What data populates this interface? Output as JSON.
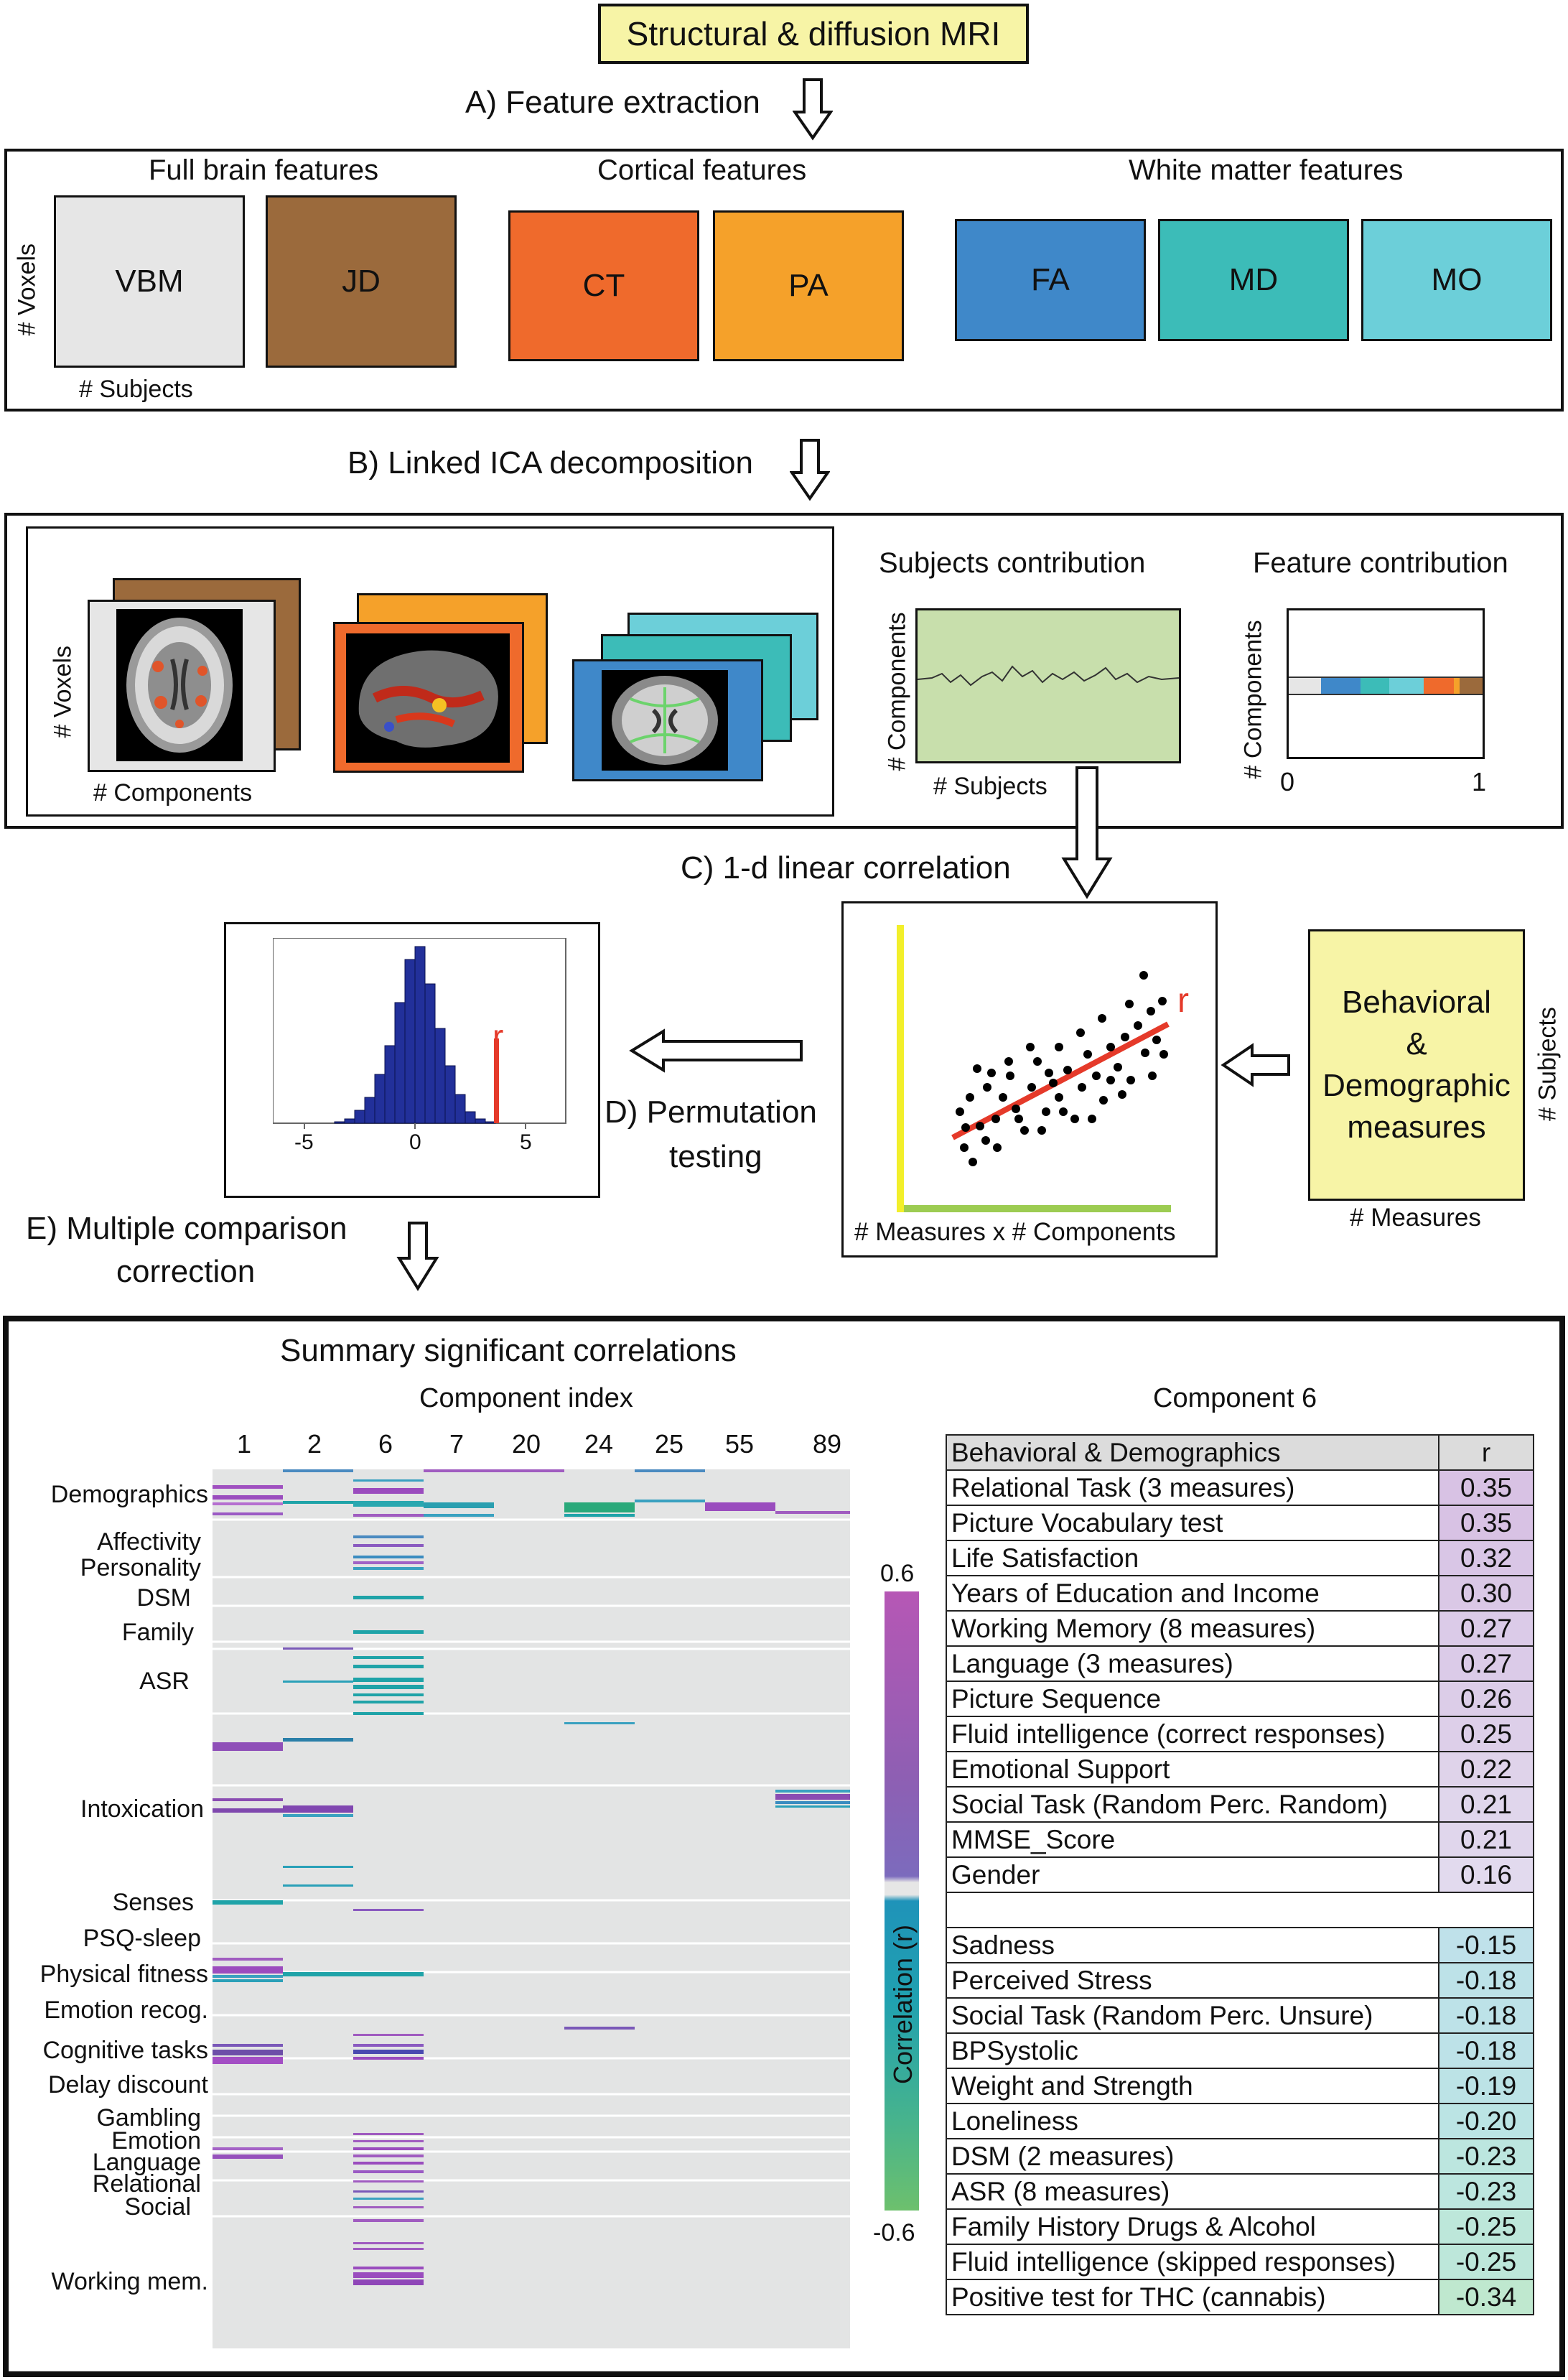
{
  "header": {
    "title": "Structural & diffusion MRI"
  },
  "stepA": {
    "label": "A) Feature extraction"
  },
  "features": {
    "groups": [
      "Full brain features",
      "Cortical features",
      "White matter features"
    ],
    "tiles": [
      {
        "name": "VBM",
        "color": "#e6e6e6"
      },
      {
        "name": "JD",
        "color": "#9b6a3c"
      },
      {
        "name": "CT",
        "color": "#ef6a2c"
      },
      {
        "name": "PA",
        "color": "#f5a12a"
      },
      {
        "name": "FA",
        "color": "#3f88c9"
      },
      {
        "name": "MD",
        "color": "#3cbcb8"
      },
      {
        "name": "MO",
        "color": "#6ccfd9"
      }
    ],
    "voxels_label": "# Voxels",
    "subjects_label": "# Subjects"
  },
  "stepB": {
    "label": "B) Linked ICA decomposition"
  },
  "ica": {
    "voxels_label": "# Voxels",
    "components_label": "# Components",
    "subjects_contribution": "Subjects contribution",
    "feature_contribution": "Feature contribution",
    "sc_ylabel": "# Components",
    "sc_xlabel": "# Subjects",
    "fc_ylabel": "# Components",
    "fc_x0": "0",
    "fc_x1": "1"
  },
  "stepC": {
    "label": "C) 1-d linear correlation"
  },
  "scatter": {
    "r_label": "r",
    "xlabel": "# Measures x # Components"
  },
  "behavioral": {
    "line1": "Behavioral",
    "line2": "&",
    "line3": "Demographic",
    "line4": "measures",
    "measures_label": "# Measures",
    "subjects_label": "# Subjects"
  },
  "stepD": {
    "line1": "D) Permutation",
    "line2": "testing"
  },
  "histogram": {
    "r_label": "r",
    "ticks": [
      "-5",
      "0",
      "5"
    ]
  },
  "stepE": {
    "line1": "E) Multiple comparison",
    "line2": "correction"
  },
  "summary": {
    "title": "Summary significant correlations",
    "component_index_label": "Component index",
    "columns": [
      "1",
      "2",
      "6",
      "7",
      "20",
      "24",
      "25",
      "55",
      "89"
    ],
    "categories": [
      "Demographics",
      "Affectivity",
      "Personality",
      "DSM",
      "Family",
      "ASR",
      "Intoxication",
      "Senses",
      "PSQ-sleep",
      "Physical fitness",
      "Emotion recog.",
      "Cognitive tasks",
      "Delay discount",
      "Gambling",
      "Emotion",
      "Language",
      "Relational",
      "Social",
      "Working mem."
    ],
    "colorbar": {
      "label": "Correlation (r)",
      "max": "0.6",
      "min": "-0.6"
    }
  },
  "component6": {
    "title": "Component 6",
    "header": [
      "Behavioral & Demographics",
      "r"
    ],
    "positive": [
      {
        "label": "Relational Task (3 measures)",
        "r": "0.35"
      },
      {
        "label": "Picture Vocabulary test",
        "r": "0.35"
      },
      {
        "label": "Life Satisfaction",
        "r": "0.32"
      },
      {
        "label": "Years of Education and Income",
        "r": "0.30"
      },
      {
        "label": "Working Memory (8 measures)",
        "r": "0.27"
      },
      {
        "label": "Language (3 measures)",
        "r": "0.27"
      },
      {
        "label": "Picture Sequence",
        "r": "0.26"
      },
      {
        "label": "Fluid intelligence (correct responses)",
        "r": "0.25"
      },
      {
        "label": "Emotional Support",
        "r": "0.22"
      },
      {
        "label": "Social Task (Random Perc. Random)",
        "r": "0.21"
      },
      {
        "label": "MMSE_Score",
        "r": "0.21"
      },
      {
        "label": "Gender",
        "r": "0.16"
      }
    ],
    "negative": [
      {
        "label": "Sadness",
        "r": "-0.15"
      },
      {
        "label": "Perceived Stress",
        "r": "-0.18"
      },
      {
        "label": "Social Task (Random Perc. Unsure)",
        "r": "-0.18"
      },
      {
        "label": "BPSystolic",
        "r": "-0.18"
      },
      {
        "label": "Weight and Strength",
        "r": "-0.19"
      },
      {
        "label": "Loneliness",
        "r": "-0.20"
      },
      {
        "label": "DSM (2 measures)",
        "r": "-0.23"
      },
      {
        "label": "ASR (8 measures)",
        "r": "-0.23"
      },
      {
        "label": "Family History Drugs & Alcohol",
        "r": "-0.25"
      },
      {
        "label": "Fluid intelligence (skipped responses)",
        "r": "-0.25"
      },
      {
        "label": "Positive test for THC (cannabis)",
        "r": "-0.34"
      }
    ]
  }
}
